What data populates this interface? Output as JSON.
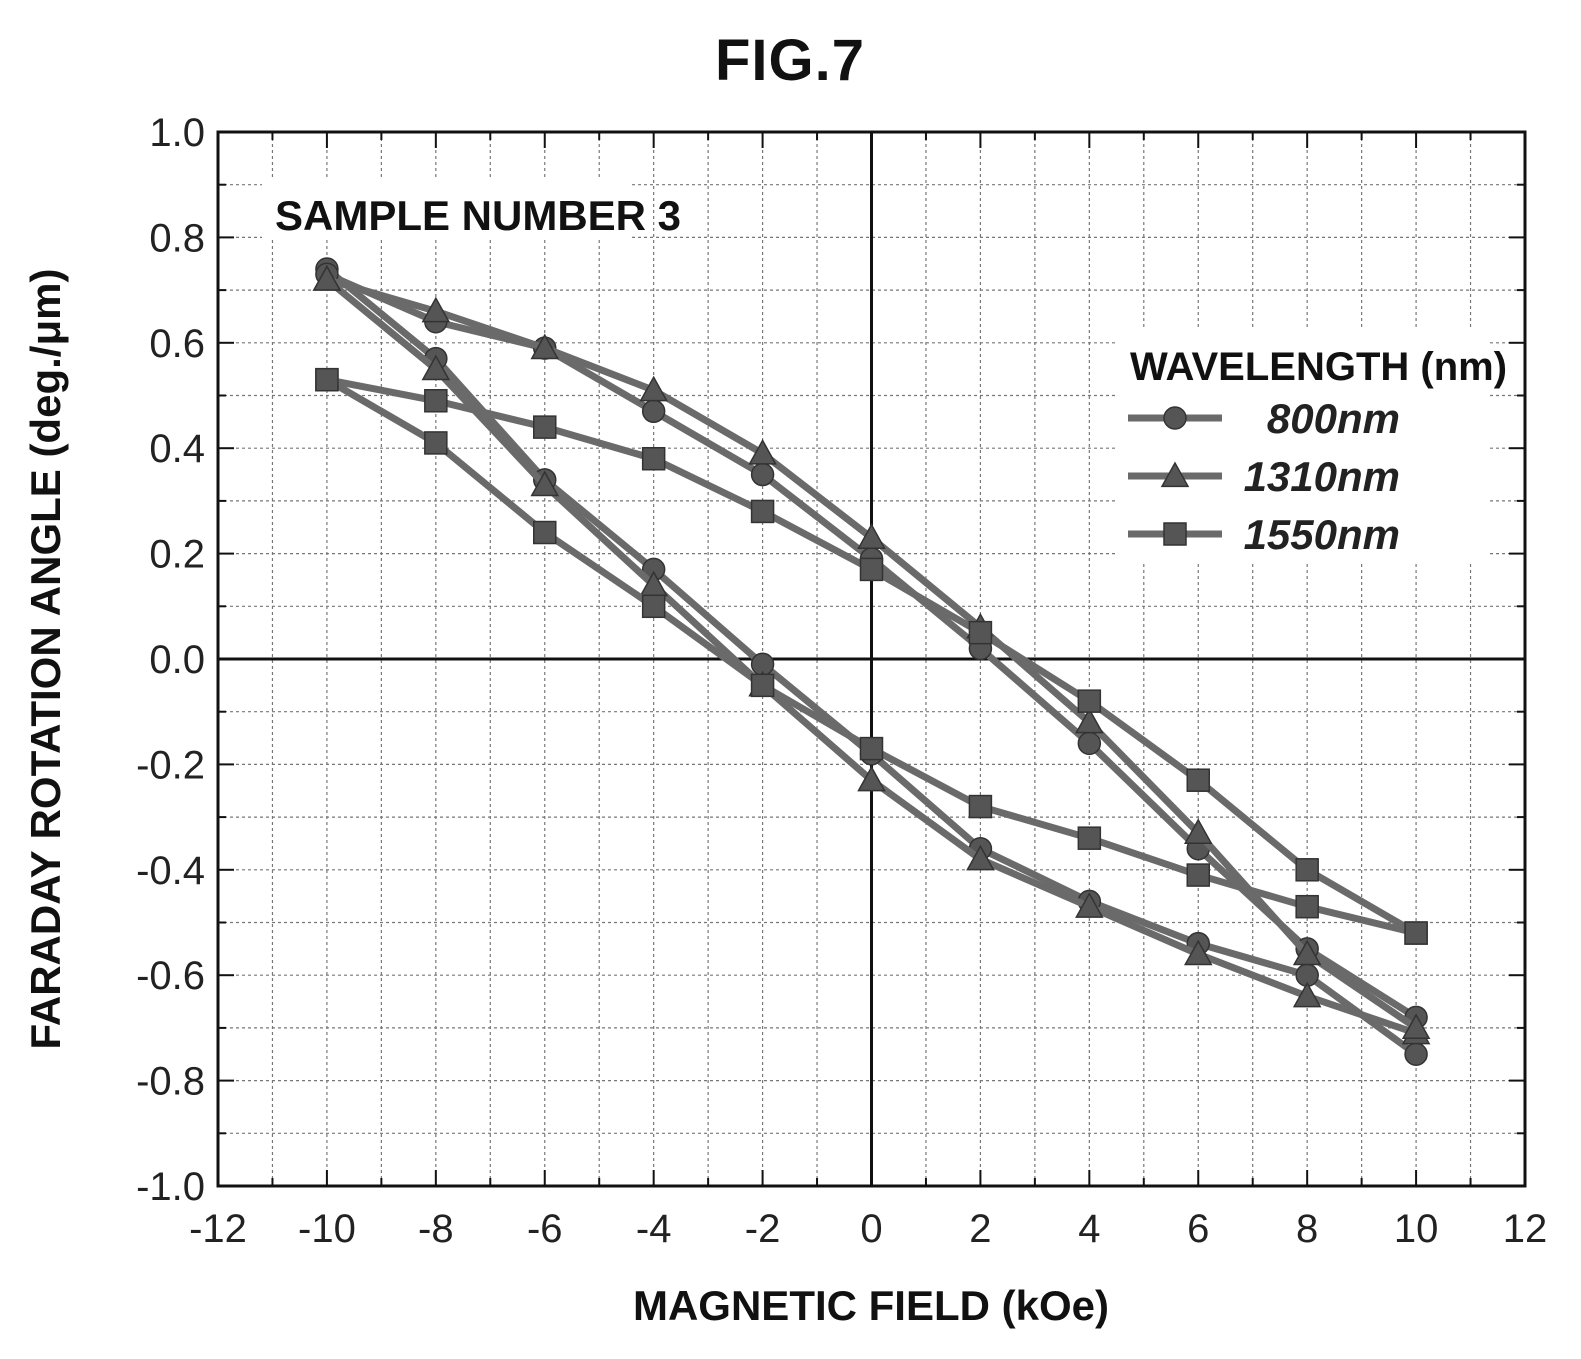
{
  "figure_title": "FIG.7",
  "chart_data": {
    "type": "line",
    "title": "FIG.7",
    "xlabel": "MAGNETIC FIELD (kOe)",
    "ylabel": "FARADAY ROTATION ANGLE (deg./μm)",
    "xlim": [
      -12,
      12
    ],
    "ylim": [
      -1.0,
      1.0
    ],
    "x_ticks": [
      "-12",
      "-10",
      "-8",
      "-6",
      "-4",
      "-2",
      "0",
      "2",
      "4",
      "6",
      "8",
      "10",
      "12"
    ],
    "y_ticks": [
      "1.0",
      "0.8",
      "0.6",
      "0.4",
      "0.2",
      "0.0",
      "-0.2",
      "-0.4",
      "-0.6",
      "-0.8",
      "-1.0"
    ],
    "grid": true,
    "annotation": "SAMPLE NUMBER 3",
    "legend_title": "WAVELENGTH (nm)",
    "legend_position": "right",
    "series": [
      {
        "name": "800nm",
        "marker": "circle",
        "branches": [
          {
            "x": [
              -10,
              -8,
              -6,
              -4,
              -2,
              0,
              2,
              4,
              6,
              8,
              10
            ],
            "y": [
              0.74,
              0.57,
              0.34,
              0.17,
              -0.01,
              -0.18,
              -0.36,
              -0.46,
              -0.54,
              -0.6,
              -0.75
            ]
          },
          {
            "x": [
              -10,
              -8,
              -6,
              -4,
              -2,
              0,
              2,
              4,
              6,
              8,
              10
            ],
            "y": [
              0.73,
              0.64,
              0.59,
              0.47,
              0.35,
              0.19,
              0.02,
              -0.16,
              -0.36,
              -0.55,
              -0.68
            ]
          }
        ]
      },
      {
        "name": "1310nm",
        "marker": "triangle",
        "branches": [
          {
            "x": [
              -10,
              -8,
              -6,
              -4,
              -2,
              0,
              2,
              4,
              6,
              8,
              10
            ],
            "y": [
              0.72,
              0.55,
              0.33,
              0.14,
              -0.05,
              -0.23,
              -0.38,
              -0.47,
              -0.56,
              -0.64,
              -0.71
            ]
          },
          {
            "x": [
              -10,
              -8,
              -6,
              -4,
              -2,
              0,
              2,
              4,
              6,
              8,
              10
            ],
            "y": [
              0.72,
              0.66,
              0.59,
              0.51,
              0.39,
              0.23,
              0.06,
              -0.12,
              -0.33,
              -0.56,
              -0.7
            ]
          }
        ]
      },
      {
        "name": "1550nm",
        "marker": "square",
        "branches": [
          {
            "x": [
              -10,
              -8,
              -6,
              -4,
              -2,
              0,
              2,
              4,
              6,
              8,
              10
            ],
            "y": [
              0.53,
              0.41,
              0.24,
              0.1,
              -0.05,
              -0.17,
              -0.28,
              -0.34,
              -0.41,
              -0.47,
              -0.52
            ]
          },
          {
            "x": [
              -10,
              -8,
              -6,
              -4,
              -2,
              0,
              2,
              4,
              6,
              8,
              10
            ],
            "y": [
              0.53,
              0.49,
              0.44,
              0.38,
              0.28,
              0.17,
              0.05,
              -0.08,
              -0.23,
              -0.4,
              -0.52
            ]
          }
        ]
      }
    ]
  },
  "colors": {
    "line": "#6a6a6a",
    "marker": "#555555",
    "axis": "#111111",
    "grid": "#777777"
  }
}
